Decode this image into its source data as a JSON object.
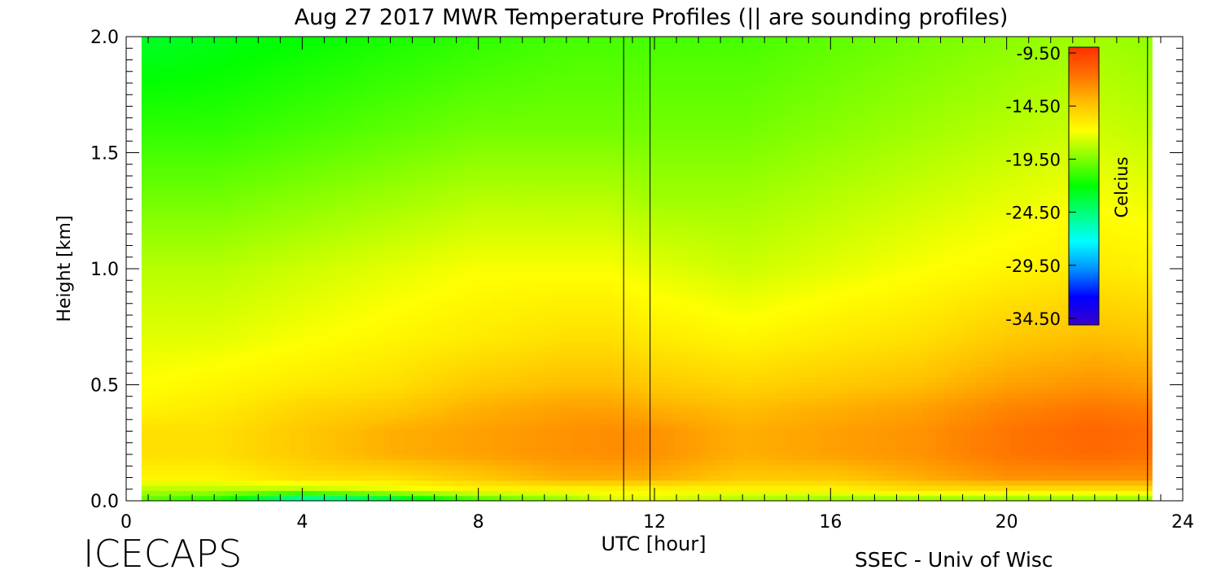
{
  "title": "Aug 27 2017 MWR Temperature Profiles (|| are sounding profiles)",
  "footer": {
    "left": "ICECAPS",
    "right": "SSEC - Univ of Wisc"
  },
  "colorbar": {
    "label": "Celcius",
    "ticks": [
      "-9.50",
      "-14.50",
      "-19.50",
      "-24.50",
      "-29.50",
      "-34.50"
    ],
    "tick_values": [
      -9.5,
      -14.5,
      -19.5,
      -24.5,
      -29.5,
      -34.5
    ],
    "range": [
      -36,
      -8
    ],
    "colors": [
      "#3a00cc",
      "#0000ff",
      "#0090ff",
      "#00ffff",
      "#00ff80",
      "#00ff00",
      "#80ff00",
      "#ffff00",
      "#ffc000",
      "#ff7000",
      "#ff3000"
    ]
  },
  "chart_data": {
    "type": "heatmap",
    "title": "Aug 27 2017 MWR Temperature Profiles (|| are sounding profiles)",
    "xlabel": "UTC [hour]",
    "ylabel": "Height [km]",
    "xlim": [
      0,
      24
    ],
    "ylim": [
      0,
      2.0
    ],
    "xticks": [
      "0",
      "4",
      "8",
      "12",
      "16",
      "20",
      "24"
    ],
    "xtick_values": [
      0,
      4,
      8,
      12,
      16,
      20,
      24
    ],
    "yticks": [
      "0.0",
      "0.5",
      "1.0",
      "1.5",
      "2.0"
    ],
    "ytick_values": [
      0,
      0.5,
      1.0,
      1.5,
      2.0
    ],
    "data_x_range": [
      0.35,
      23.3
    ],
    "sounding_profiles_utc": [
      11.3,
      11.9,
      23.2
    ],
    "z_unit": "Celcius",
    "heights_km": [
      0.0,
      0.02,
      0.05,
      0.1,
      0.2,
      0.3,
      0.4,
      0.5,
      0.7,
      1.0,
      1.3,
      1.6,
      2.0
    ],
    "times_utc": [
      0,
      2,
      4,
      6,
      8,
      10,
      11,
      12,
      14,
      16,
      18,
      20,
      22,
      24
    ],
    "temperature_c": [
      [
        -20,
        -22,
        -28,
        -26,
        -21,
        -19,
        -17,
        -17,
        -18,
        -19,
        -19,
        -19,
        -19,
        -19
      ],
      [
        -19,
        -20,
        -23,
        -21,
        -19,
        -18,
        -17,
        -17,
        -18,
        -18,
        -18,
        -18,
        -18,
        -18
      ],
      [
        -18,
        -18,
        -18,
        -17,
        -16,
        -16,
        -16,
        -16,
        -16,
        -16,
        -15,
        -15,
        -15,
        -15
      ],
      [
        -16,
        -16,
        -15,
        -15,
        -14,
        -13,
        -13,
        -13,
        -14,
        -14,
        -13,
        -12,
        -12,
        -12
      ],
      [
        -15,
        -15,
        -14,
        -13,
        -12.5,
        -12,
        -11.8,
        -12,
        -13,
        -12.5,
        -12,
        -11,
        -10.5,
        -11
      ],
      [
        -15,
        -15,
        -14,
        -13,
        -12.5,
        -12,
        -11.8,
        -12,
        -13,
        -12.5,
        -12,
        -11,
        -10.3,
        -11
      ],
      [
        -16,
        -15.5,
        -14.5,
        -14,
        -13,
        -12.5,
        -12.5,
        -13,
        -13.5,
        -13,
        -12.5,
        -11.5,
        -11,
        -11.5
      ],
      [
        -16.5,
        -16,
        -15.5,
        -15,
        -14,
        -13.5,
        -13.5,
        -14,
        -14.5,
        -14,
        -13.5,
        -12.5,
        -12,
        -12.5
      ],
      [
        -17,
        -17,
        -16.5,
        -16,
        -15.5,
        -15,
        -15,
        -15.5,
        -16,
        -15.5,
        -15,
        -14,
        -13.5,
        -14
      ],
      [
        -18,
        -18,
        -17.5,
        -17,
        -16.5,
        -16.5,
        -16.5,
        -17,
        -17.5,
        -17,
        -16.5,
        -16,
        -15.5,
        -16
      ],
      [
        -19.5,
        -19.5,
        -19,
        -18.5,
        -18,
        -18,
        -18,
        -18.5,
        -18.5,
        -18,
        -17.5,
        -17,
        -16.5,
        -17
      ],
      [
        -21,
        -21,
        -20.5,
        -20,
        -19.5,
        -19.5,
        -19.5,
        -19.5,
        -19.5,
        -19,
        -18.5,
        -18,
        -17.5,
        -18
      ],
      [
        -23,
        -22.5,
        -22,
        -21.5,
        -21,
        -20.5,
        -20.5,
        -20.5,
        -20.5,
        -20,
        -19.5,
        -19,
        -18.5,
        -19
      ]
    ]
  }
}
